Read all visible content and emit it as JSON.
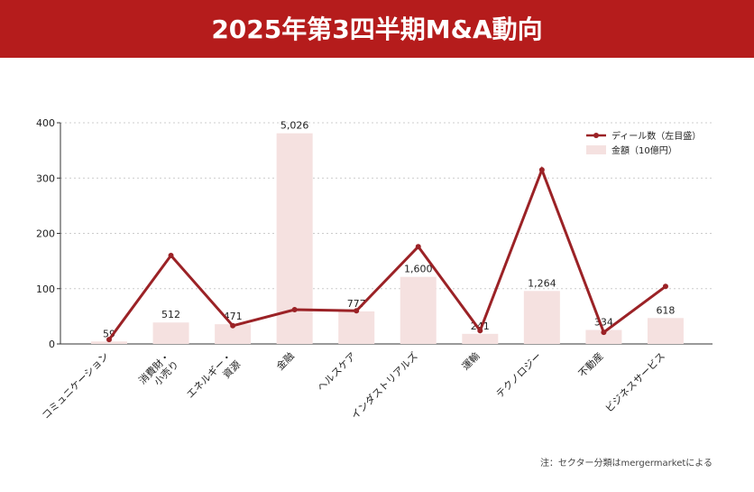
{
  "chart_data": {
    "type": "bar_line",
    "title": "2025年第3四半期M&A動向",
    "categories": [
      "コミュニケーション",
      "消費財・\n小売り",
      "エネルギー・\n資源",
      "金融",
      "ヘルスケア",
      "インダストリアルズ",
      "運輸",
      "テクノロジー",
      "不動産",
      "ビジネスサービス"
    ],
    "series": [
      {
        "name": "ディール数（左目盛）",
        "color": "#9b2226",
        "type": "line",
        "values": [
          8,
          160,
          33,
          62,
          60,
          176,
          24,
          315,
          21,
          104
        ]
      },
      {
        "name": "金額（10億円）",
        "color": "#f5e1e0",
        "type": "bar",
        "axis": "y2",
        "values": [
          59,
          512,
          471,
          5026,
          777,
          1600,
          241,
          1264,
          334,
          618
        ],
        "value_labels": [
          "59",
          "512",
          "471",
          "5,026",
          "777",
          "1,600",
          "241",
          "1,264",
          "334",
          "618"
        ]
      }
    ],
    "ylim": [
      0,
      400
    ],
    "yticks": [
      0,
      100,
      200,
      300,
      400
    ],
    "y2lim": [
      0,
      5277
    ],
    "grid": true,
    "legend": "upper right",
    "note": "注：セクター分類はmergermarketによる"
  }
}
